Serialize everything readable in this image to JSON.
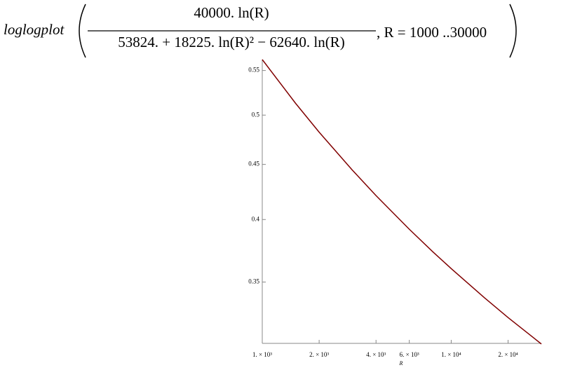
{
  "chart_data": {
    "type": "line",
    "command": "loglogplot",
    "numerator": "40000. ln(R)",
    "denominator": "53824. + 18225. ln(R)² − 62640. ln(R)",
    "range_text": ", R = 1000 ..30000",
    "x_label": "R",
    "xscale": "log",
    "yscale": "log",
    "xlim": [
      1000,
      30000
    ],
    "ylim": [
      0.307,
      0.563
    ],
    "xticks": [
      {
        "value": 1000,
        "label": "1. × 10³"
      },
      {
        "value": 2000,
        "label": "2. × 10³"
      },
      {
        "value": 4000,
        "label": "4. × 10³"
      },
      {
        "value": 6000,
        "label": "6. × 10³"
      },
      {
        "value": 10000,
        "label": "1. × 10⁴"
      },
      {
        "value": 20000,
        "label": "2. × 10⁴"
      }
    ],
    "yticks": [
      0.35,
      0.4,
      0.45,
      0.5,
      0.55
    ],
    "x": [
      1000,
      1500,
      2000,
      3000,
      4000,
      6000,
      8000,
      10000,
      15000,
      20000,
      30000
    ],
    "series": [
      {
        "color": "#800000",
        "values": [
          0.563,
          0.5128,
          0.4821,
          0.4445,
          0.421,
          0.3918,
          0.3733,
          0.3602,
          0.3384,
          0.3244,
          0.3066
        ]
      }
    ]
  }
}
